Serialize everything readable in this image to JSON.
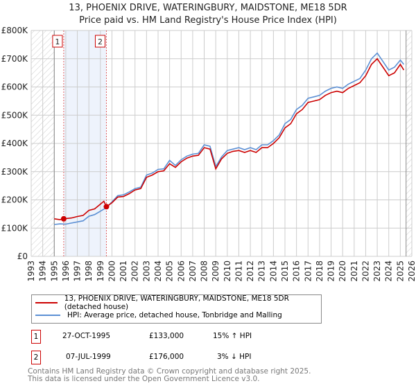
{
  "title": "13, PHOENIX DRIVE, WATERINGBURY, MAIDSTONE, ME18 5DR",
  "subtitle": "Price paid vs. HM Land Registry's House Price Index (HPI)",
  "chart_data": {
    "type": "line",
    "ylim": [
      0,
      800000
    ],
    "xlim": [
      1993,
      2026
    ],
    "yticks": [
      {
        "v": 0,
        "label": "£0"
      },
      {
        "v": 100000,
        "label": "£100K"
      },
      {
        "v": 200000,
        "label": "£200K"
      },
      {
        "v": 300000,
        "label": "£300K"
      },
      {
        "v": 400000,
        "label": "£400K"
      },
      {
        "v": 500000,
        "label": "£500K"
      },
      {
        "v": 600000,
        "label": "£600K"
      },
      {
        "v": 700000,
        "label": "£700K"
      },
      {
        "v": 800000,
        "label": "£800K"
      }
    ],
    "xticks": [
      "1993",
      "1994",
      "1995",
      "1996",
      "1997",
      "1998",
      "1999",
      "2000",
      "2001",
      "2002",
      "2003",
      "2004",
      "2005",
      "2006",
      "2007",
      "2008",
      "2009",
      "2010",
      "2011",
      "2012",
      "2013",
      "2014",
      "2015",
      "2016",
      "2017",
      "2018",
      "2019",
      "2020",
      "2021",
      "2022",
      "2023",
      "2024",
      "2025",
      "2026"
    ],
    "data_start": 1995.0,
    "data_end": 2025.5,
    "series": [
      {
        "name": "13, PHOENIX DRIVE, WATERINGBURY, MAIDSTONE, ME18 5DR (detached house)",
        "color": "#cc0000",
        "x": [
          1995.0,
          1995.5,
          1995.82,
          1996.5,
          1997.0,
          1997.5,
          1998.0,
          1998.5,
          1999.0,
          1999.3,
          1999.52,
          2000.0,
          2000.5,
          2001.0,
          2001.5,
          2002.0,
          2002.5,
          2003.0,
          2003.5,
          2004.0,
          2004.5,
          2005.0,
          2005.5,
          2006.0,
          2006.5,
          2007.0,
          2007.5,
          2008.0,
          2008.5,
          2009.0,
          2009.5,
          2010.0,
          2010.5,
          2011.0,
          2011.5,
          2012.0,
          2012.5,
          2013.0,
          2013.5,
          2014.0,
          2014.5,
          2015.0,
          2015.5,
          2016.0,
          2016.5,
          2017.0,
          2017.5,
          2018.0,
          2018.5,
          2019.0,
          2019.5,
          2020.0,
          2020.5,
          2021.0,
          2021.5,
          2022.0,
          2022.5,
          2023.0,
          2023.5,
          2024.0,
          2024.5,
          2025.0,
          2025.3
        ],
        "y": [
          133000,
          130000,
          133000,
          136000,
          141000,
          145000,
          163000,
          168000,
          185000,
          195000,
          176000,
          190000,
          210000,
          212000,
          222000,
          235000,
          240000,
          280000,
          288000,
          300000,
          303000,
          328000,
          315000,
          335000,
          348000,
          355000,
          358000,
          385000,
          380000,
          310000,
          345000,
          365000,
          372000,
          375000,
          368000,
          375000,
          368000,
          385000,
          385000,
          400000,
          420000,
          455000,
          470000,
          505000,
          520000,
          545000,
          550000,
          555000,
          570000,
          580000,
          585000,
          580000,
          595000,
          605000,
          615000,
          640000,
          680000,
          700000,
          670000,
          640000,
          650000,
          680000,
          660000
        ]
      },
      {
        "name": "HPI: Average price, detached house, Tonbridge and Malling",
        "color": "#5b8fd4",
        "x": [
          1995.0,
          1995.5,
          1996.0,
          1996.5,
          1997.0,
          1997.5,
          1998.0,
          1998.5,
          1999.0,
          1999.5,
          2000.0,
          2000.5,
          2001.0,
          2001.5,
          2002.0,
          2002.5,
          2003.0,
          2003.5,
          2004.0,
          2004.5,
          2005.0,
          2005.5,
          2006.0,
          2006.5,
          2007.0,
          2007.5,
          2008.0,
          2008.5,
          2009.0,
          2009.5,
          2010.0,
          2010.5,
          2011.0,
          2011.5,
          2012.0,
          2012.5,
          2013.0,
          2013.5,
          2014.0,
          2014.5,
          2015.0,
          2015.5,
          2016.0,
          2016.5,
          2017.0,
          2017.5,
          2018.0,
          2018.5,
          2019.0,
          2019.5,
          2020.0,
          2020.5,
          2021.0,
          2021.5,
          2022.0,
          2022.5,
          2023.0,
          2023.5,
          2024.0,
          2024.5,
          2025.0,
          2025.3
        ],
        "y": [
          113000,
          115000,
          114000,
          118000,
          122000,
          126000,
          142000,
          148000,
          160000,
          172000,
          193000,
          215000,
          218000,
          228000,
          240000,
          245000,
          288000,
          295000,
          308000,
          310000,
          340000,
          322000,
          342000,
          355000,
          362000,
          365000,
          395000,
          390000,
          318000,
          352000,
          375000,
          380000,
          385000,
          378000,
          385000,
          378000,
          395000,
          395000,
          410000,
          430000,
          470000,
          485000,
          520000,
          535000,
          560000,
          565000,
          570000,
          585000,
          595000,
          600000,
          595000,
          610000,
          620000,
          630000,
          660000,
          700000,
          720000,
          690000,
          660000,
          670000,
          695000,
          680000
        ]
      }
    ],
    "sales": [
      {
        "label": "1",
        "x": 1995.82,
        "price": 133000
      },
      {
        "label": "2",
        "x": 1999.52,
        "price": 176000
      }
    ]
  },
  "legend": {
    "property": "13, PHOENIX DRIVE, WATERINGBURY, MAIDSTONE, ME18 5DR (detached house)",
    "hpi": "HPI: Average price, detached house, Tonbridge and Malling"
  },
  "transactions": [
    {
      "num": "1",
      "date": "27-OCT-1995",
      "price": "£133,000",
      "delta": "15% ↑ HPI"
    },
    {
      "num": "2",
      "date": "07-JUL-1999",
      "price": "£176,000",
      "delta": "3% ↓ HPI"
    }
  ],
  "footer": {
    "line1": "Contains HM Land Registry data © Crown copyright and database right 2025.",
    "line2": "This data is licensed under the Open Government Licence v3.0."
  }
}
